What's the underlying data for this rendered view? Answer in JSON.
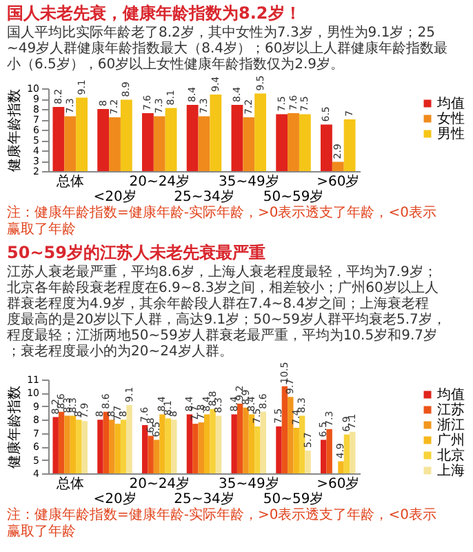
{
  "chart_data": [
    {
      "type": "bar",
      "title": "国人未老先衰，健康年龄指数为8.2岁！",
      "subtitle": "国人平均比实际年龄老了8.2岁，其中女性为7.3岁，男性为9.1岁；25~49岁人群健康年龄指数最大（8.4岁）；60岁以上人群健康年龄指数最小（6.5岁），60岁以上女性健康年龄指数仅为2.9岁。",
      "ylabel": "健康年龄指数",
      "categories": [
        "总体",
        "<20岁",
        "20~24岁",
        "25~34岁",
        "35~49岁",
        "50~59岁",
        ">60岁"
      ],
      "series": [
        {
          "name": "均值",
          "color": "#e0231c",
          "values": [
            8.2,
            8,
            7.6,
            8.4,
            8.4,
            7.5,
            6.5
          ]
        },
        {
          "name": "女性",
          "color": "#f08a1c",
          "values": [
            7.3,
            7.2,
            7.3,
            7.3,
            7.2,
            7.6,
            2.9
          ]
        },
        {
          "name": "男性",
          "color": "#f5c518",
          "values": [
            9.1,
            8.9,
            8.1,
            9.4,
            9.5,
            7.5,
            7
          ]
        }
      ],
      "ylim": [
        2,
        10
      ],
      "yticks": [
        2,
        3,
        4,
        5,
        6,
        7,
        8,
        9,
        10
      ],
      "data_labels": true,
      "legend": "right",
      "annotations": [
        "注：健康年龄指数=健康年龄-实际年龄，>0表示透支了年龄，<0表示赢取了年龄"
      ]
    },
    {
      "type": "bar",
      "title": "50~59岁的江苏人未老先衰最严重",
      "subtitle": "江苏人衰老最严重，平均8.6岁，上海人衰老程度最轻，平均为7.9岁；北京各年龄段衰老程度在6.9~8.3岁之间，相差较小；广州60岁以上人群衰老程度为4.9岁，其余年龄段人群在7.4~8.4岁之间；上海衰老程度最高的是20岁以下人群，高达9.1岁；50~59岁人群平均衰老5.7岁，程度最轻；江浙两地50~59岁人群衰老最严重，平均为10.5岁和9.7岁；衰老程度最小的为20~24岁人群。",
      "ylabel": "健康年龄指数",
      "categories": [
        "总体",
        "<20岁",
        "20~24岁",
        "25~34岁",
        "35~49岁",
        "50~59岁",
        ">60岁"
      ],
      "series": [
        {
          "name": "均值",
          "color": "#e0231c",
          "values": [
            8.2,
            8,
            7.6,
            8.4,
            8.4,
            7.5,
            6.5
          ]
        },
        {
          "name": "江苏",
          "color": "#ec5418",
          "values": [
            8.6,
            8.6,
            6.8,
            7.7,
            9.2,
            10.5,
            7.3
          ]
        },
        {
          "name": "浙江",
          "color": "#f2961e",
          "values": [
            8.3,
            8,
            6.5,
            7.8,
            8.9,
            9.7,
            null
          ]
        },
        {
          "name": "广州",
          "color": "#f6b81c",
          "values": [
            8.3,
            7.7,
            8.4,
            8.4,
            8.4,
            7.4,
            4.9
          ]
        },
        {
          "name": "北京",
          "color": "#f7d23a",
          "values": [
            8,
            8,
            8.1,
            8.8,
            7.5,
            8.3,
            6.9
          ]
        },
        {
          "name": "上海",
          "color": "#f5e49a",
          "values": [
            7.9,
            9.1,
            8,
            8.3,
            8.6,
            5.7,
            7.1
          ]
        }
      ],
      "ylim": [
        4,
        11
      ],
      "yticks": [
        4,
        5,
        6,
        7,
        8,
        9,
        10,
        11
      ],
      "data_labels": true,
      "legend": "right",
      "annotations": [
        "注：健康年龄指数=健康年龄-实际年龄，>0表示透支了年龄，<0表示赢取了年龄"
      ]
    }
  ]
}
